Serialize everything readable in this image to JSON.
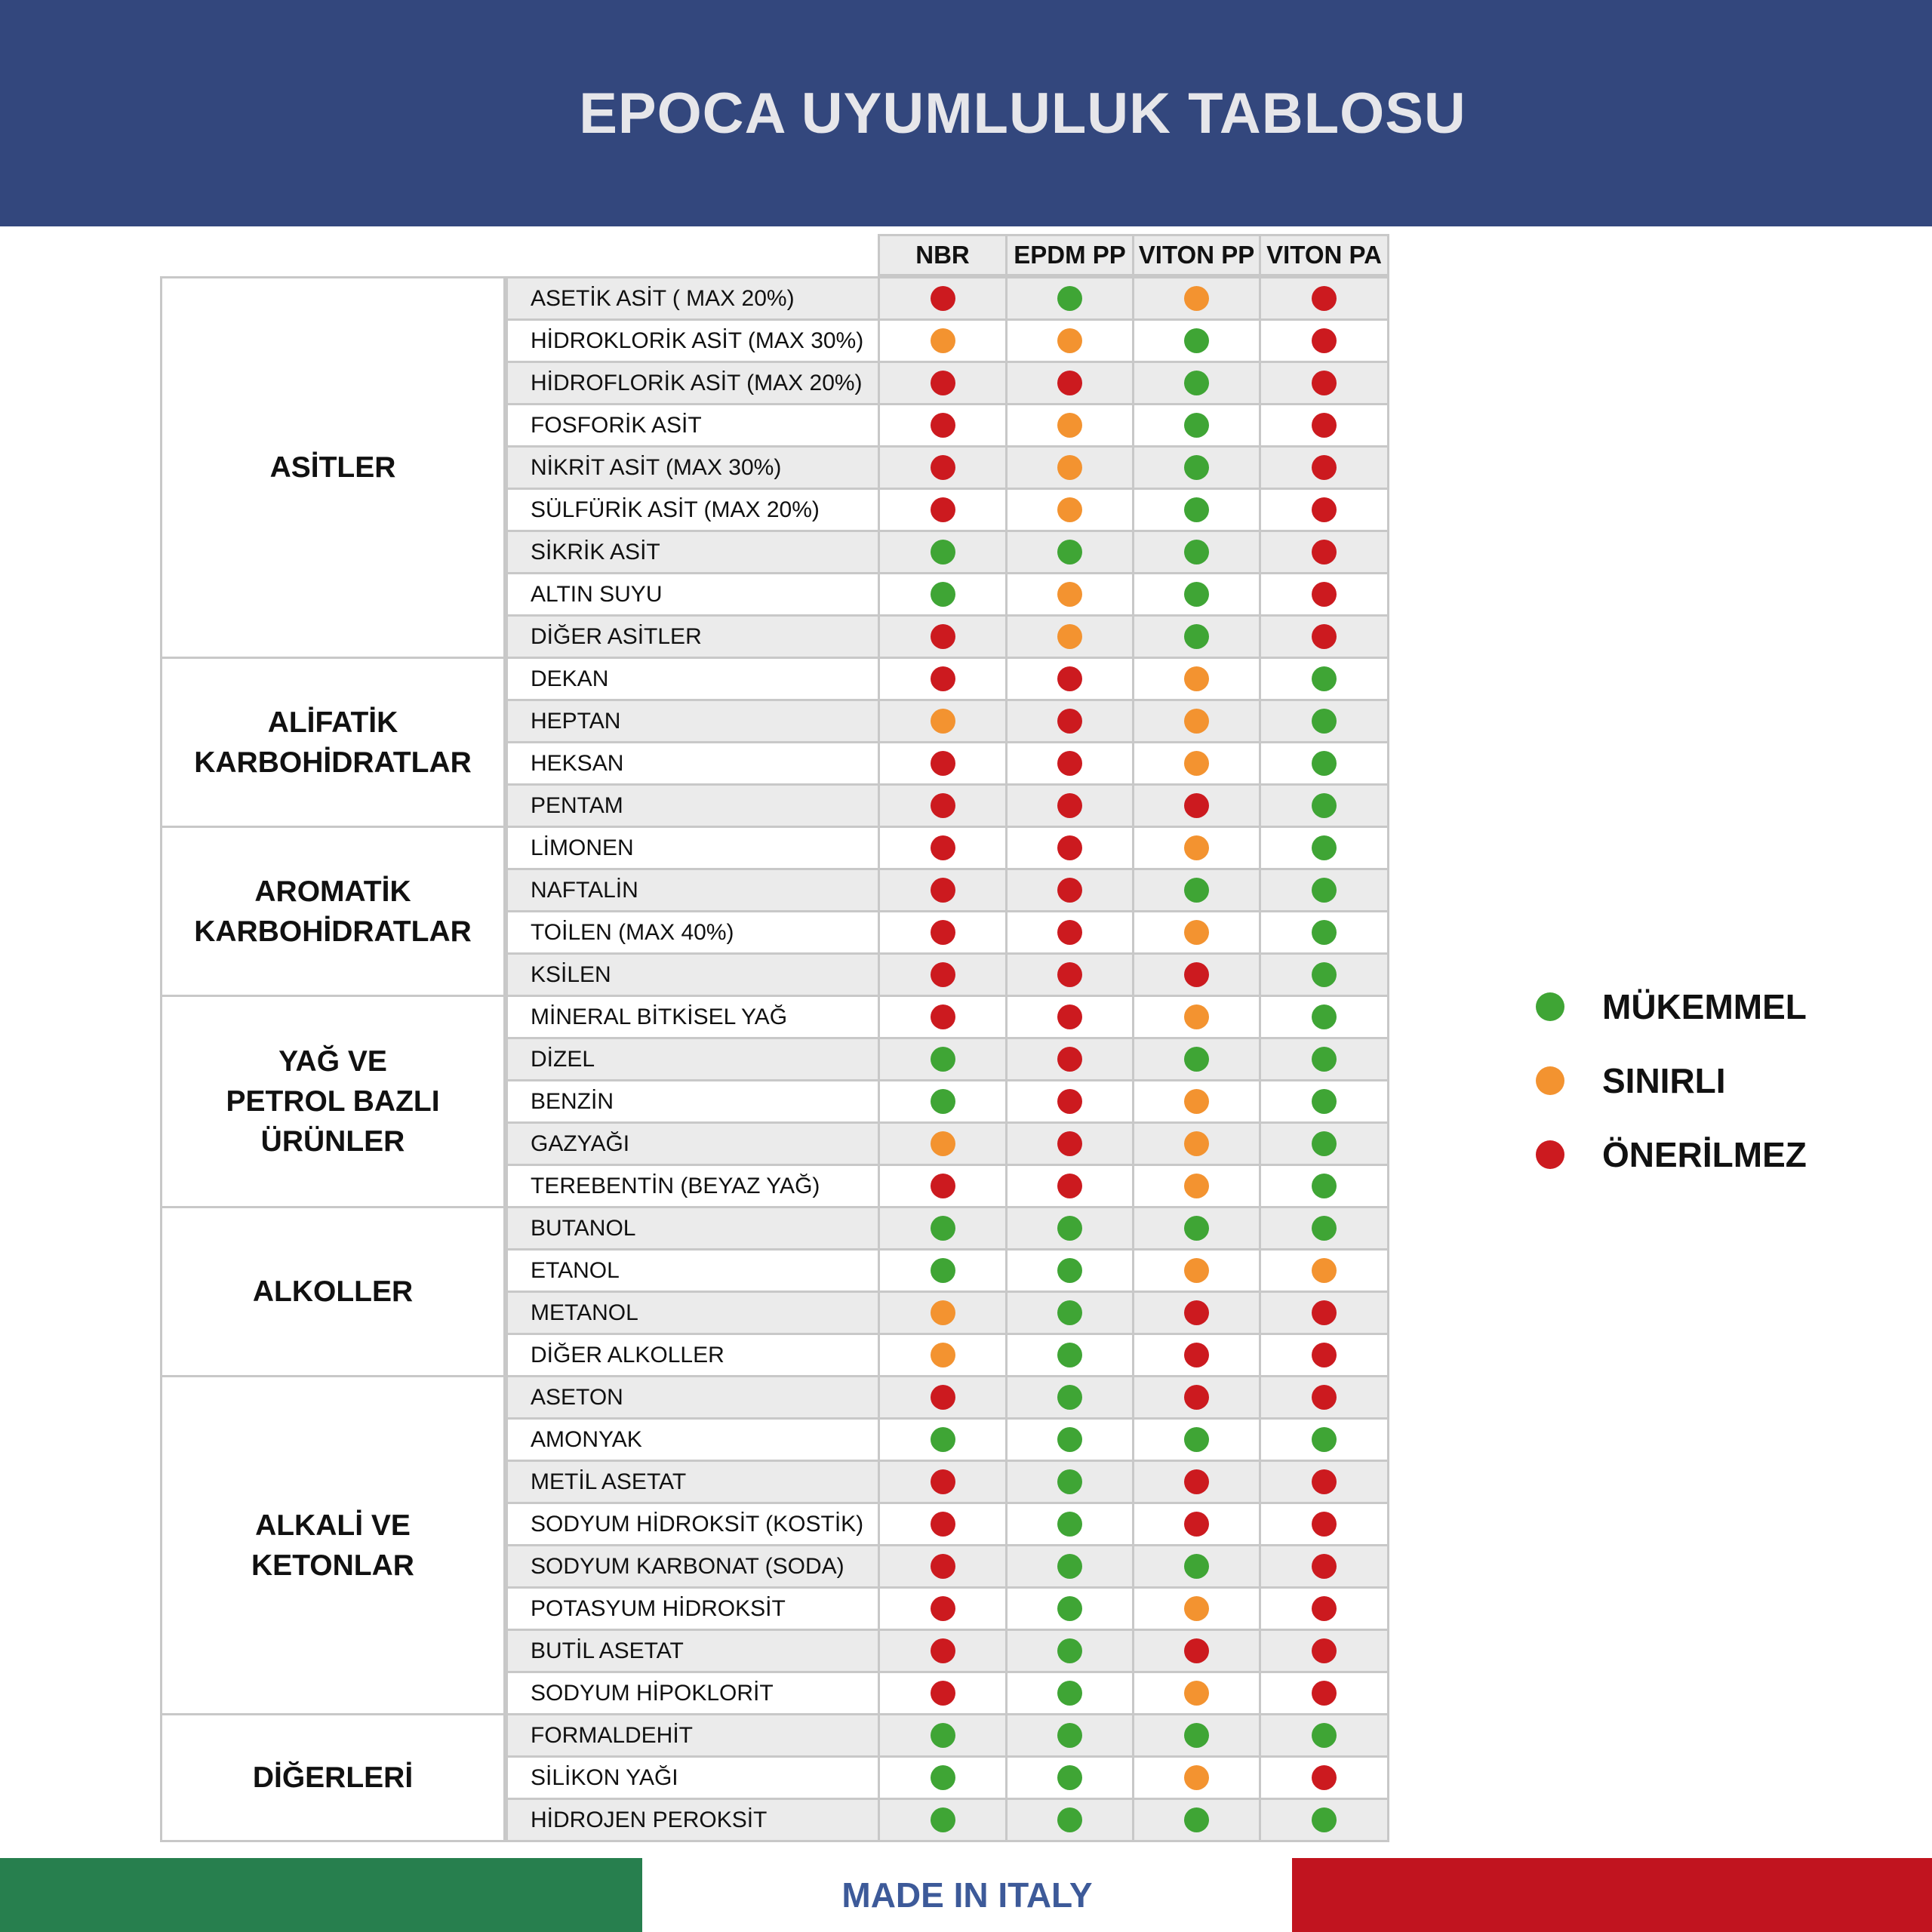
{
  "header": {
    "title": "EPOCA UYUMLULUK TABLOSU"
  },
  "colors": {
    "G": "#3fa535",
    "O": "#f39330",
    "R": "#cc1a1f",
    "banner": "#33477d"
  },
  "columns": [
    "NBR",
    "EPDM PP",
    "VITON PP",
    "VITON PA"
  ],
  "groups": [
    {
      "label": "ASİTLER",
      "rows": [
        {
          "name": "ASETİK ASİT ( MAX 20%)",
          "v": [
            "R",
            "G",
            "O",
            "R"
          ]
        },
        {
          "name": "HİDROKLORİK ASİT (MAX 30%)",
          "v": [
            "O",
            "O",
            "G",
            "R"
          ]
        },
        {
          "name": "HİDROFLORİK ASİT (MAX 20%)",
          "v": [
            "R",
            "R",
            "G",
            "R"
          ]
        },
        {
          "name": "FOSFORİK ASİT",
          "v": [
            "R",
            "O",
            "G",
            "R"
          ]
        },
        {
          "name": "NİKRİT ASİT (MAX 30%)",
          "v": [
            "R",
            "O",
            "G",
            "R"
          ]
        },
        {
          "name": "SÜLFÜRİK ASİT (MAX 20%)",
          "v": [
            "R",
            "O",
            "G",
            "R"
          ]
        },
        {
          "name": "SİKRİK ASİT",
          "v": [
            "G",
            "G",
            "G",
            "R"
          ]
        },
        {
          "name": "ALTIN SUYU",
          "v": [
            "G",
            "O",
            "G",
            "R"
          ]
        },
        {
          "name": "DİĞER ASİTLER",
          "v": [
            "R",
            "O",
            "G",
            "R"
          ]
        }
      ]
    },
    {
      "label": "ALİFATİK KARBOHİDRATLAR",
      "rows": [
        {
          "name": "DEKAN",
          "v": [
            "R",
            "R",
            "O",
            "G"
          ]
        },
        {
          "name": "HEPTAN",
          "v": [
            "O",
            "R",
            "O",
            "G"
          ]
        },
        {
          "name": "HEKSAN",
          "v": [
            "R",
            "R",
            "O",
            "G"
          ]
        },
        {
          "name": "PENTAM",
          "v": [
            "R",
            "R",
            "R",
            "G"
          ]
        }
      ]
    },
    {
      "label": "AROMATİK KARBOHİDRATLAR",
      "rows": [
        {
          "name": "LİMONEN",
          "v": [
            "R",
            "R",
            "O",
            "G"
          ]
        },
        {
          "name": "NAFTALİN",
          "v": [
            "R",
            "R",
            "G",
            "G"
          ]
        },
        {
          "name": "TOİLEN (MAX 40%)",
          "v": [
            "R",
            "R",
            "O",
            "G"
          ]
        },
        {
          "name": "KSİLEN",
          "v": [
            "R",
            "R",
            "R",
            "G"
          ]
        }
      ]
    },
    {
      "label": "YAĞ VE PETROL BAZLI ÜRÜNLER",
      "rows": [
        {
          "name": "MİNERAL BİTKİSEL YAĞ",
          "v": [
            "R",
            "R",
            "O",
            "G"
          ]
        },
        {
          "name": "DİZEL",
          "v": [
            "G",
            "R",
            "G",
            "G"
          ]
        },
        {
          "name": "BENZİN",
          "v": [
            "G",
            "R",
            "O",
            "G"
          ]
        },
        {
          "name": "GAZYAĞI",
          "v": [
            "O",
            "R",
            "O",
            "G"
          ]
        },
        {
          "name": "TEREBENTİN (BEYAZ YAĞ)",
          "v": [
            "R",
            "R",
            "O",
            "G"
          ]
        }
      ]
    },
    {
      "label": "ALKOLLER",
      "rows": [
        {
          "name": "BUTANOL",
          "v": [
            "G",
            "G",
            "G",
            "G"
          ]
        },
        {
          "name": "ETANOL",
          "v": [
            "G",
            "G",
            "O",
            "O"
          ]
        },
        {
          "name": "METANOL",
          "v": [
            "O",
            "G",
            "R",
            "R"
          ]
        },
        {
          "name": "DİĞER ALKOLLER",
          "v": [
            "O",
            "G",
            "R",
            "R"
          ]
        }
      ]
    },
    {
      "label": "ALKALİ VE KETONLAR",
      "rows": [
        {
          "name": "ASETON",
          "v": [
            "R",
            "G",
            "R",
            "R"
          ]
        },
        {
          "name": "AMONYAK",
          "v": [
            "G",
            "G",
            "G",
            "G"
          ]
        },
        {
          "name": "METİL ASETAT",
          "v": [
            "R",
            "G",
            "R",
            "R"
          ]
        },
        {
          "name": "SODYUM HİDROKSİT (KOSTİK)",
          "v": [
            "R",
            "G",
            "R",
            "R"
          ]
        },
        {
          "name": "SODYUM KARBONAT (SODA)",
          "v": [
            "R",
            "G",
            "G",
            "R"
          ]
        },
        {
          "name": "POTASYUM HİDROKSİT",
          "v": [
            "R",
            "G",
            "O",
            "R"
          ]
        },
        {
          "name": "BUTİL ASETAT",
          "v": [
            "R",
            "G",
            "R",
            "R"
          ]
        },
        {
          "name": "SODYUM HİPOKLORİT",
          "v": [
            "R",
            "G",
            "O",
            "R"
          ]
        }
      ]
    },
    {
      "label": "DİĞERLERİ",
      "rows": [
        {
          "name": "FORMALDEHİT",
          "v": [
            "G",
            "G",
            "G",
            "G"
          ]
        },
        {
          "name": "SİLİKON YAĞI",
          "v": [
            "G",
            "G",
            "O",
            "R"
          ]
        },
        {
          "name": "HİDROJEN PEROKSİT",
          "v": [
            "G",
            "G",
            "G",
            "G"
          ]
        }
      ]
    }
  ],
  "legend": [
    {
      "code": "G",
      "label": "MÜKEMMEL"
    },
    {
      "code": "O",
      "label": "SINIRLI"
    },
    {
      "code": "R",
      "label": "ÖNERİLMEZ"
    }
  ],
  "footer": {
    "text": "MADE IN ITALY"
  }
}
